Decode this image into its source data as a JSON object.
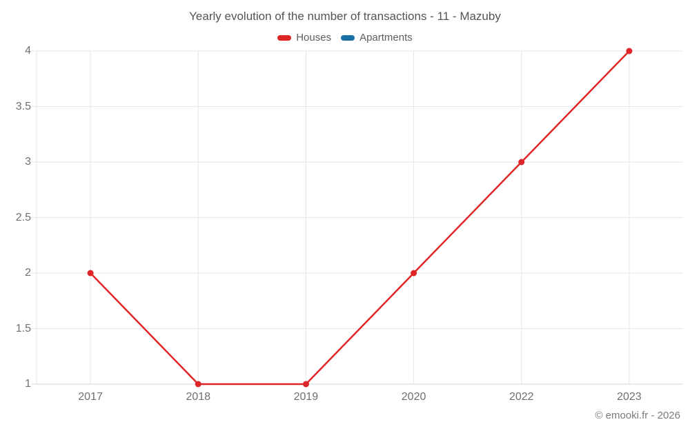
{
  "footer": {
    "text": "© emooki.fr - 2026"
  },
  "chart_data": {
    "type": "line",
    "title": "Yearly evolution of the number of transactions - 11 - Mazuby",
    "categories": [
      "2017",
      "2018",
      "2019",
      "2020",
      "2022",
      "2023"
    ],
    "y_ticks": [
      "1",
      "1.5",
      "2",
      "2.5",
      "3",
      "3.5",
      "4"
    ],
    "ylim": [
      1,
      4
    ],
    "grid": true,
    "legend_position": "top",
    "series": [
      {
        "name": "Houses",
        "color": "#df2527",
        "values": [
          2,
          1,
          1,
          2,
          3,
          4
        ]
      },
      {
        "name": "Apartments",
        "color": "#1a6fa5",
        "values": []
      }
    ],
    "colors": {
      "grid_line": "#e6e6e6",
      "axis_line": "#d4d4d4",
      "tick_text": "#6f6f6f"
    }
  }
}
